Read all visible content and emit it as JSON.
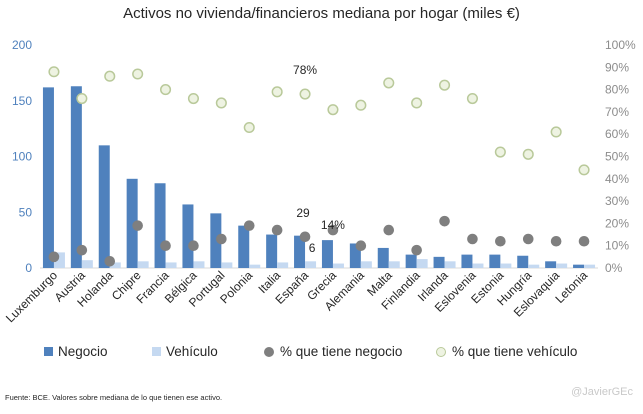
{
  "chart_data": {
    "type": "bar",
    "title": "Activos no vivienda/financieros mediana por hogar (miles €)",
    "categories": [
      "Luxemburgo",
      "Austria",
      "Holanda",
      "Chipre",
      "Francia",
      "Bélgica",
      "Portugal",
      "Polonia",
      "Italia",
      "España",
      "Grecia",
      "Alemania",
      "Malta",
      "Finlandia",
      "Irlanda",
      "Eslovenia",
      "Estonia",
      "Hungría",
      "Eslovaquia",
      "Letonia"
    ],
    "series": [
      {
        "name": "Negocio",
        "axis": "left",
        "kind": "bar",
        "color": "#4f81bd",
        "values": [
          162,
          163,
          110,
          80,
          76,
          57,
          49,
          38,
          30,
          29,
          25,
          22,
          18,
          12,
          10,
          12,
          12,
          11,
          6,
          3
        ]
      },
      {
        "name": "Vehículo",
        "axis": "left",
        "kind": "bar",
        "color": "#c5d9f1",
        "values": [
          14,
          7,
          5,
          6,
          5,
          6,
          5,
          3,
          5,
          6,
          4,
          6,
          6,
          8,
          6,
          4,
          4,
          3,
          4,
          3
        ]
      },
      {
        "name": "% que tiene negocio",
        "axis": "right",
        "kind": "point",
        "color": "#7f7f7f",
        "values": [
          5,
          8,
          3,
          19,
          10,
          10,
          13,
          19,
          17,
          14,
          17,
          10,
          17,
          8,
          21,
          13,
          12,
          13,
          12,
          12
        ]
      },
      {
        "name": "% que tiene vehículo",
        "axis": "right",
        "kind": "point",
        "color": "#d7e4bd",
        "values": [
          88,
          76,
          86,
          87,
          80,
          76,
          74,
          63,
          79,
          78,
          71,
          73,
          83,
          74,
          82,
          76,
          52,
          51,
          61,
          44
        ]
      }
    ],
    "ylim": [
      0,
      200
    ],
    "yticks": [
      "0",
      "50",
      "100",
      "150",
      "200"
    ],
    "y2lim": [
      0,
      100
    ],
    "y2ticks": [
      "0%",
      "10%",
      "20%",
      "30%",
      "40%",
      "50%",
      "60%",
      "70%",
      "80%",
      "90%",
      "100%"
    ],
    "annotations": [
      {
        "text": "78%",
        "category": "España"
      },
      {
        "text": "29",
        "category": "España"
      },
      {
        "text": "14%",
        "category": "Grecia"
      },
      {
        "text": "6",
        "category": "España"
      }
    ],
    "legend_position": "bottom",
    "grid": false
  },
  "footer": {
    "source": "Fuente: BCE. Valores sobre mediana  de lo que tienen ese activo.",
    "credit": "@JavierGEc"
  }
}
